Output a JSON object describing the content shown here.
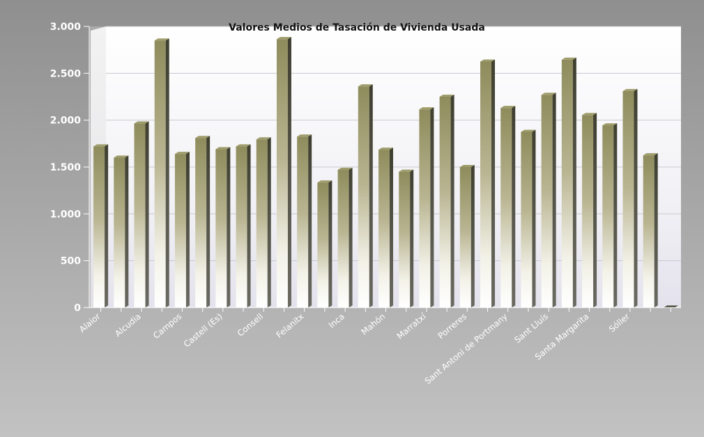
{
  "chart_data": {
    "type": "bar",
    "title": "Valores Medios de Tasación de Vivienda Usada",
    "xlabel": "",
    "ylabel": "",
    "ylim": [
      0,
      3000
    ],
    "yticks": [
      0,
      500,
      1000,
      1500,
      2000,
      2500,
      3000
    ],
    "ytick_labels": [
      "0",
      "500",
      "1.000",
      "1.500",
      "2.000",
      "2.500",
      "3.000"
    ],
    "grid": true,
    "legend": "none",
    "categories": [
      "Alaior",
      "",
      "Alcudia",
      "",
      "Campos",
      "",
      "Castell (Es)",
      "",
      "Consell",
      "",
      "Felanitx",
      "",
      "Inca",
      "",
      "Mahón",
      "",
      "Marratxí",
      "",
      "Porreres",
      "",
      "Sant Antoni de Portmany",
      "",
      "Sant Lluís",
      "",
      "Santa Margarita",
      "",
      "Sóller",
      "",
      ""
    ],
    "values": [
      1720,
      1600,
      1965,
      2850,
      1640,
      1810,
      1690,
      1720,
      1795,
      2865,
      1825,
      1335,
      1470,
      2360,
      1685,
      1450,
      2115,
      2250,
      1500,
      2625,
      2130,
      1875,
      2270,
      2645,
      2055,
      1945,
      2310,
      1625,
      0
    ],
    "colors": {
      "bar_top": "#8e8c5c",
      "bar_bottom": "#ffffff",
      "bar_side": "#4a4a3a",
      "plot_bg": "#ffffff"
    }
  }
}
